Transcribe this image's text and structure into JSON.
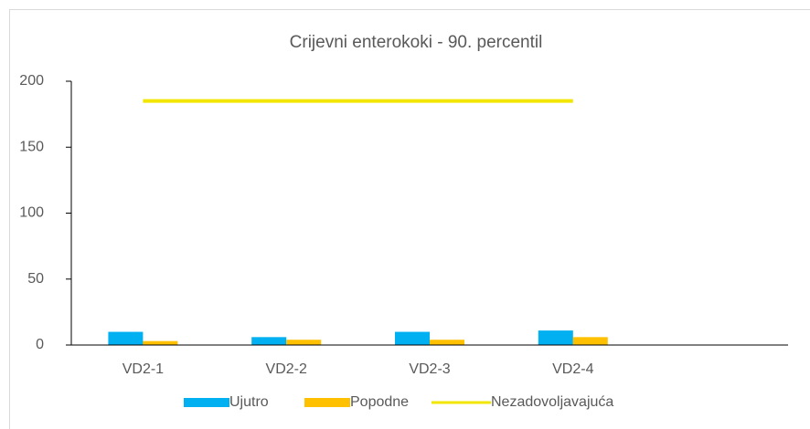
{
  "chart_data": {
    "type": "bar",
    "title": "Crijevni enterokoki - 90. percentil",
    "categories": [
      "VD2-1",
      "VD2-2",
      "VD2-3",
      "VD2-4",
      null
    ],
    "series": [
      {
        "name": "Ujutro",
        "type": "bar",
        "color": "#00b0f0",
        "values": [
          10,
          6,
          10,
          11,
          null
        ]
      },
      {
        "name": "Popodne",
        "type": "bar",
        "color": "#ffc000",
        "values": [
          3,
          4,
          4,
          6,
          null
        ]
      },
      {
        "name": "Nezadovoljavajuća",
        "type": "line",
        "color": "#f2e600",
        "values": [
          185,
          185,
          185,
          185,
          null
        ]
      }
    ],
    "ylim": [
      0,
      200
    ],
    "yticks": [
      0,
      50,
      100,
      150,
      200
    ],
    "grid": false,
    "legend": "bottom"
  }
}
